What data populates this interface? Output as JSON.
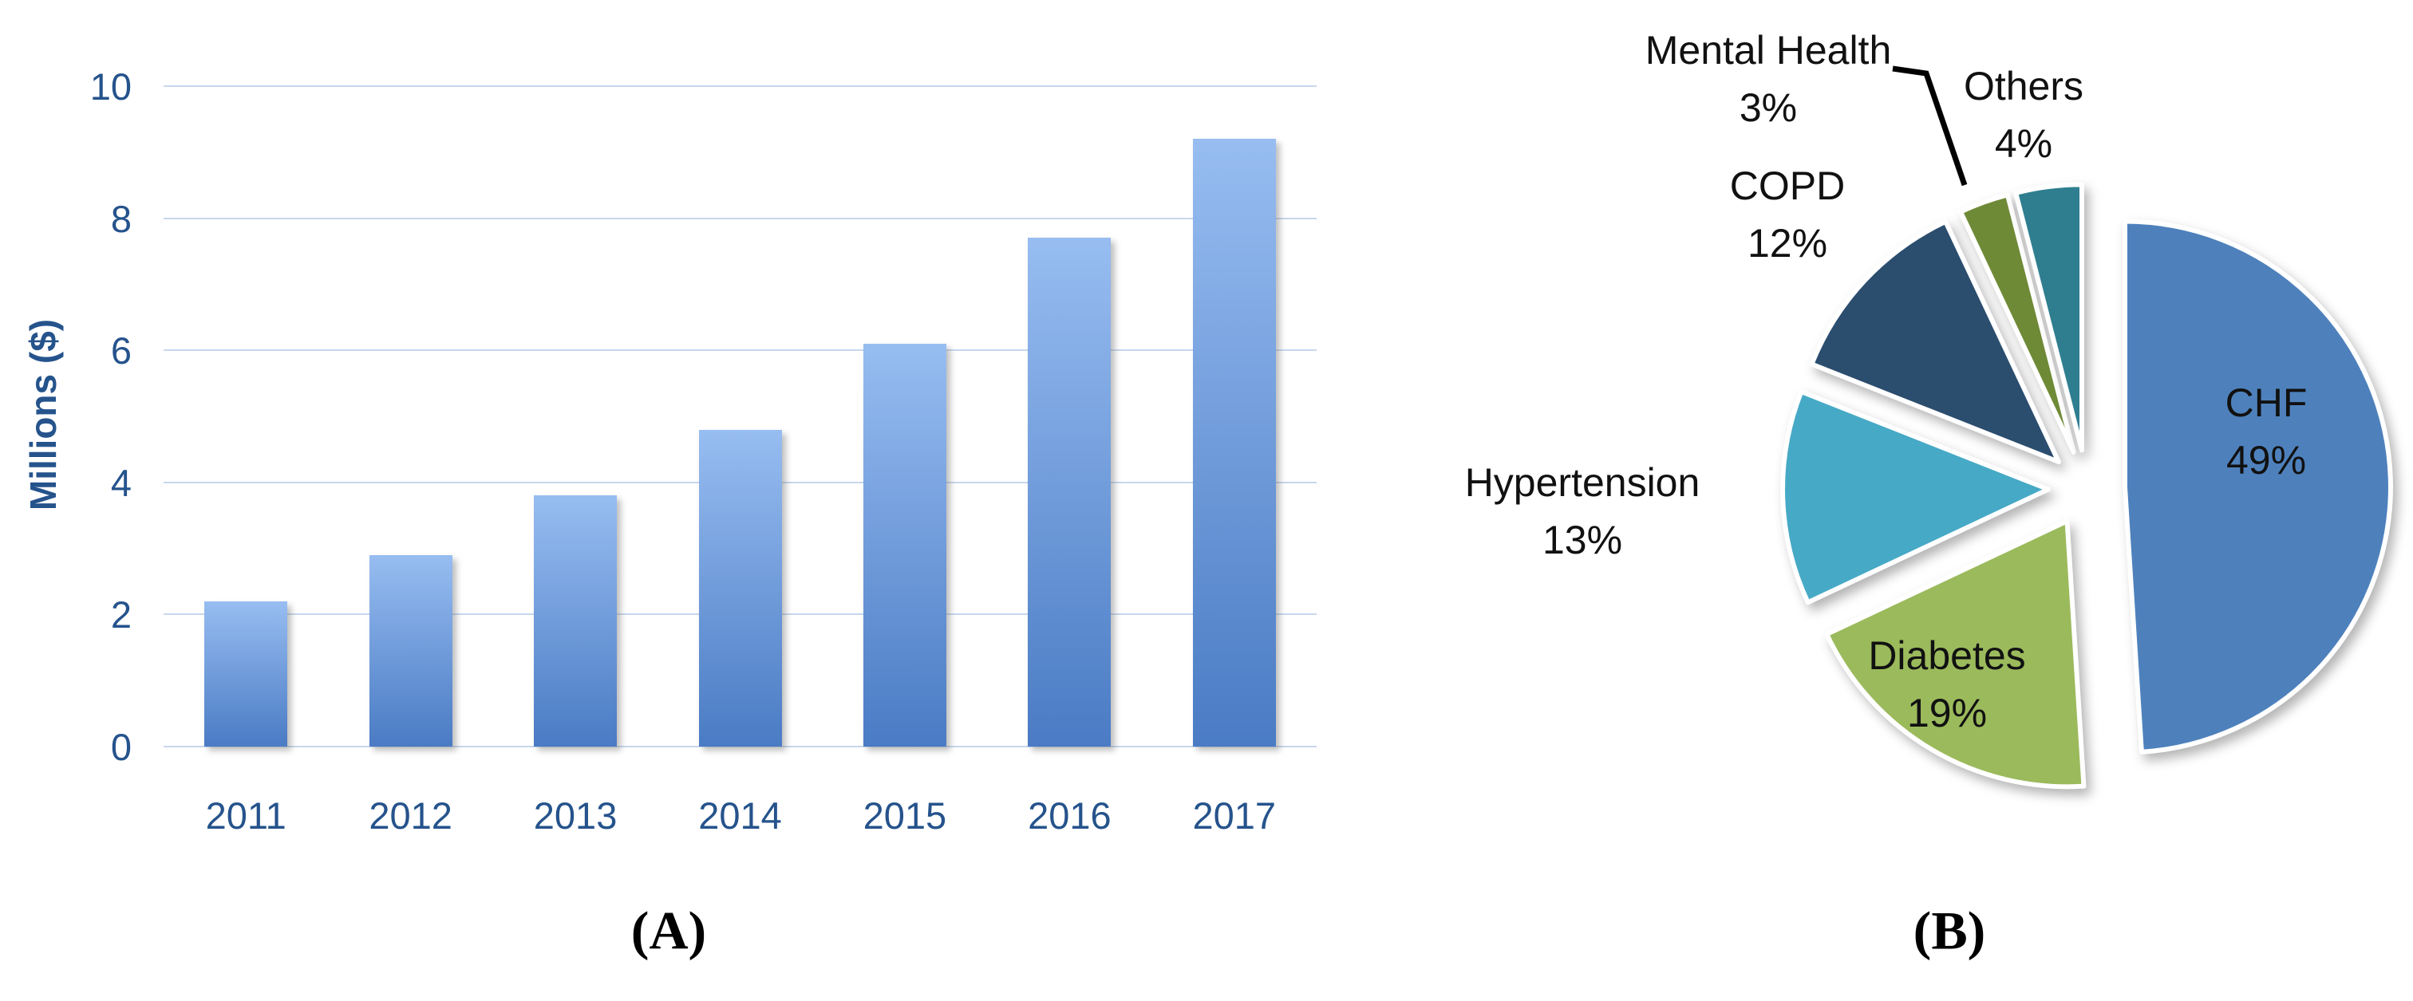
{
  "panels": {
    "a_label": "(A)",
    "b_label": "(B)"
  },
  "chart_data": [
    {
      "id": "bar-chart",
      "type": "bar",
      "title": "",
      "xlabel": "",
      "ylabel": "Millions ($)",
      "categories": [
        "2011",
        "2012",
        "2013",
        "2014",
        "2015",
        "2016",
        "2017"
      ],
      "values": [
        2.2,
        2.9,
        3.8,
        4.8,
        6.1,
        7.7,
        9.2
      ],
      "ylim": [
        0,
        10
      ],
      "yticks": [
        0,
        2,
        4,
        6,
        8,
        10
      ],
      "grid": true,
      "legend_position": "none",
      "colors": {
        "bar_gradient_top": "#97BDF1",
        "bar_gradient_bottom": "#4A7BC4",
        "gridline": "#C7D7ED",
        "axis_text": "#25538C"
      }
    },
    {
      "id": "pie-chart",
      "type": "pie",
      "start_angle_deg": 0,
      "direction": "clockwise",
      "exploded": true,
      "label_text_color": "#111111",
      "slices": [
        {
          "label": "CHF",
          "value_pct": 49,
          "pct_display": "49%",
          "color": "#4E81BC",
          "label_placement": "inside"
        },
        {
          "label": "Diabetes",
          "value_pct": 19,
          "pct_display": "19%",
          "color": "#9BBA5C",
          "label_placement": "inside"
        },
        {
          "label": "Hypertension",
          "value_pct": 13,
          "pct_display": "13%",
          "color": "#46A9C5",
          "label_placement": "outside"
        },
        {
          "label": "COPD",
          "value_pct": 12,
          "pct_display": "12%",
          "color": "#2B4D6E",
          "label_placement": "outside"
        },
        {
          "label": "Mental Health",
          "value_pct": 3,
          "pct_display": "3%",
          "color": "#6F8A37",
          "label_placement": "outside-leader"
        },
        {
          "label": "Others",
          "value_pct": 4,
          "pct_display": "4%",
          "color": "#2F7E90",
          "label_placement": "outside"
        }
      ]
    }
  ]
}
